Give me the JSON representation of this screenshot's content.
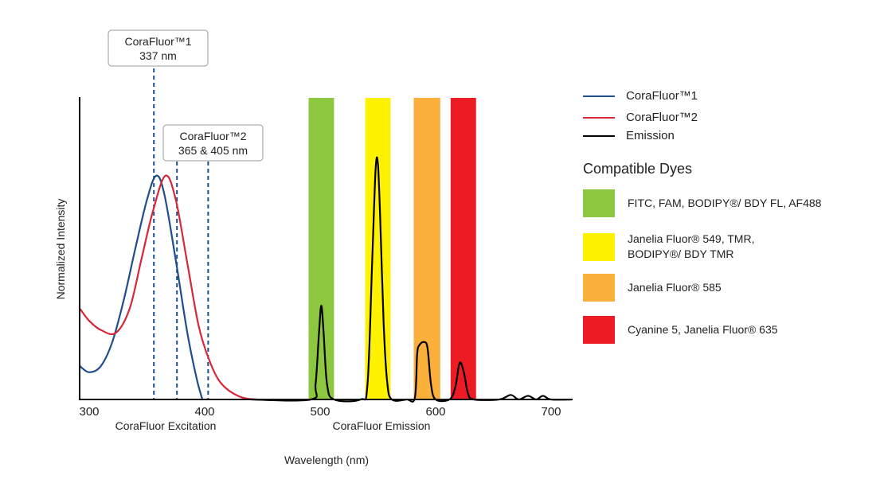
{
  "chart_data": {
    "type": "line",
    "xlabel": "Wavelength (nm)",
    "ylabel": "Normalized Intensity",
    "section_labels": [
      "CoraFluor Excitation",
      "CoraFluor Emission"
    ],
    "xlim": [
      292,
      718
    ],
    "ylim": [
      0,
      1
    ],
    "x_ticks": [
      300,
      400,
      500,
      600,
      700
    ],
    "grid": false,
    "legend_placement": "right",
    "series": [
      {
        "name": "CoraFluor™1",
        "color": "#1f4e8c",
        "x": [
          292,
          300,
          310,
          320,
          330,
          340,
          350,
          358,
          365,
          375,
          385,
          393,
          398
        ],
        "y": [
          0.11,
          0.09,
          0.11,
          0.19,
          0.33,
          0.5,
          0.66,
          0.74,
          0.68,
          0.46,
          0.22,
          0.07,
          0
        ]
      },
      {
        "name": "CoraFluor™2",
        "color": "#d8263a",
        "x": [
          292,
          300,
          310,
          323,
          335,
          345,
          355,
          366,
          375,
          385,
          395,
          405,
          415,
          430,
          445,
          460
        ],
        "y": [
          0.3,
          0.26,
          0.23,
          0.22,
          0.3,
          0.46,
          0.62,
          0.74,
          0.66,
          0.45,
          0.24,
          0.12,
          0.05,
          0.01,
          0,
          0
        ]
      },
      {
        "name": "Emission",
        "color": "#000000",
        "x": [
          440,
          492,
          496,
          499,
          501,
          503,
          506,
          512,
          535,
          541,
          545,
          548,
          550,
          552,
          555,
          558,
          562,
          575,
          582,
          584,
          586,
          590,
          593,
          596,
          600,
          612,
          617,
          620,
          622,
          625,
          628,
          633,
          655,
          665,
          672,
          680,
          687,
          693,
          700,
          718
        ],
        "y": [
          0,
          0,
          0.05,
          0.22,
          0.31,
          0.22,
          0.05,
          0,
          0,
          0.05,
          0.45,
          0.76,
          0.78,
          0.6,
          0.25,
          0.06,
          0,
          0,
          0.005,
          0.15,
          0.18,
          0.19,
          0.17,
          0.05,
          0,
          0,
          0.04,
          0.11,
          0.12,
          0.08,
          0.02,
          0,
          0,
          0.015,
          0,
          0.012,
          0,
          0.012,
          0,
          0
        ]
      }
    ],
    "bands": [
      {
        "label": "FITC, FAM, BODIPY®/ BDY FL, AF488",
        "range": [
          490,
          512
        ],
        "color": "#8dc63f"
      },
      {
        "label": "Janelia Fluor® 549, TMR, BODIPY®/ BDY TMR",
        "range": [
          539,
          561
        ],
        "color": "#fff200"
      },
      {
        "label": "Janelia Fluor® 585",
        "range": [
          581,
          604
        ],
        "color": "#fbb03b"
      },
      {
        "label": "Cyanine 5, Janelia Fluor® 635",
        "range": [
          613,
          635
        ],
        "color": "#ed1c24"
      }
    ],
    "annotations": [
      {
        "line1": "CoraFluor™1",
        "line2": "337 nm",
        "lines_at": [
          356
        ]
      },
      {
        "line1": "CoraFluor™2",
        "line2": "365 & 405 nm",
        "lines_at": [
          376,
          403
        ]
      }
    ],
    "legend_title": "Compatible Dyes"
  }
}
